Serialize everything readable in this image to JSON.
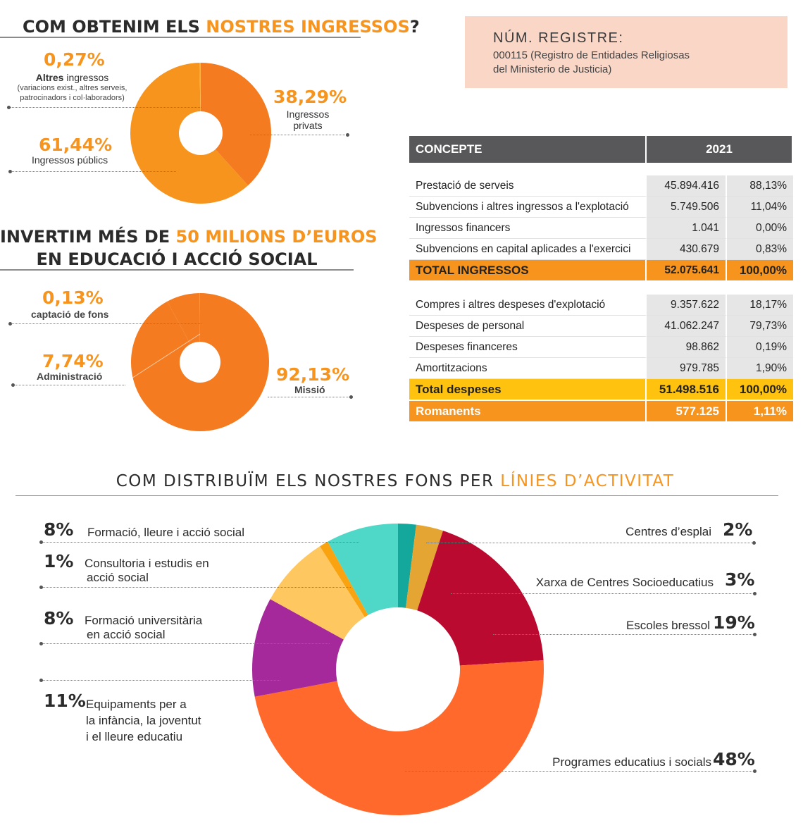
{
  "income": {
    "title_part1": "COM OBTENIM ELS ",
    "title_highlight": "NOSTRES INGRESSOS",
    "title_part2": "?",
    "altres": {
      "pct": "0,27%",
      "label_bold": "Altres",
      "label_rest": " ingressos",
      "note_line1": "(variacions exist., altres serveis,",
      "note_line2": "patrocinadors i col·laboradors)"
    },
    "privats": {
      "pct": "38,29%",
      "label_line1": "Ingressos",
      "label_line2": "privats"
    },
    "publics": {
      "pct": "61,44%",
      "label": "Ingressos públics"
    }
  },
  "invest": {
    "line1_part1": "INVERTIM MÉS DE ",
    "line1_highlight": "50 MILIONS D’EUROS",
    "line2": "EN EDUCACIÓ I ACCIÓ SOCIAL",
    "captacio": {
      "pct": "0,13%",
      "label": "captació de fons"
    },
    "admin": {
      "pct": "7,74%",
      "label": "Administració"
    },
    "missio": {
      "pct": "92,13%",
      "label": "Missió"
    }
  },
  "registry": {
    "title": "NÚM. REGISTRE:",
    "line1": "000115 (Registro de Entidades Religiosas",
    "line2": "del Ministerio de Justicia)"
  },
  "table": {
    "header": {
      "concept": "CONCEPTE",
      "year": "2021"
    },
    "income_rows": [
      {
        "concept": "Prestació de serveis",
        "amount": "45.894.416",
        "pct": "88,13%"
      },
      {
        "concept": "Subvencions i altres ingressos a l'explotació",
        "amount": "5.749.506",
        "pct": "11,04%"
      },
      {
        "concept": "Ingressos financers",
        "amount": "1.041",
        "pct": "0,00%"
      },
      {
        "concept": "Subvencions en capital aplicades a l'exercici",
        "amount": "430.679",
        "pct": "0,83%"
      }
    ],
    "income_total": {
      "concept": "TOTAL INGRESSOS",
      "amount": "52.075.641",
      "pct": "100,00%"
    },
    "expense_rows": [
      {
        "concept": "Compres i altres despeses d'explotació",
        "amount": "9.357.622",
        "pct": "18,17%"
      },
      {
        "concept": "Despeses de personal",
        "amount": "41.062.247",
        "pct": "79,73%"
      },
      {
        "concept": "Despeses financeres",
        "amount": "98.862",
        "pct": "0,19%"
      },
      {
        "concept": "Amortitzacions",
        "amount": "979.785",
        "pct": "1,90%"
      }
    ],
    "expense_total": {
      "concept": "Total despeses",
      "amount": "51.498.516",
      "pct": "100,00%"
    },
    "romanents": {
      "concept": "Romanents",
      "amount": "577.125",
      "pct": "1,11%"
    }
  },
  "distribution": {
    "title_part1": "COM DISTRIBUÏM ELS NOSTRES FONS PER ",
    "title_highlight": "LÍNIES D’ACTIVITAT",
    "labels": {
      "formacio_lleure": {
        "pct": "8%",
        "line1": "Formació, lleure i acció social"
      },
      "consultoria": {
        "pct": "1%",
        "line1": "Consultoria i estudis en",
        "line2": "acció social"
      },
      "universitaria": {
        "pct": "8%",
        "line1": "Formació universitària",
        "line2": "en acció social"
      },
      "equipaments": {
        "pct": "11%",
        "line1": "Equipaments per a",
        "line2": "la infància, la joventut",
        "line3": "i el lleure educatiu"
      },
      "esplai": {
        "pct": "2%",
        "line1": "Centres d’esplai"
      },
      "xarxa": {
        "pct": "3%",
        "line1": "Xarxa de Centres Socioeducatius"
      },
      "bressol": {
        "pct": "19%",
        "line1": "Escoles bressol"
      },
      "programes": {
        "pct": "48%",
        "line1": "Programes educatius i socials"
      }
    }
  },
  "chart_data": [
    {
      "type": "pie",
      "title": "COM OBTENIM ELS NOSTRES INGRESSOS?",
      "categories": [
        "Ingressos privats",
        "Ingressos públics",
        "Altres ingressos"
      ],
      "values": [
        38.29,
        61.44,
        0.27
      ],
      "colors": [
        "#f47b20",
        "#f7941d",
        "#ffb347"
      ]
    },
    {
      "type": "pie",
      "title": "INVERTIM MÉS DE 50 MILIONS D’EUROS EN EDUCACIÓ I ACCIÓ SOCIAL",
      "categories": [
        "Missió",
        "Administració",
        "captació de fons"
      ],
      "values": [
        92.13,
        7.74,
        0.13
      ],
      "colors": [
        "#f47b20",
        "#f47b20",
        "#f7941d"
      ]
    },
    {
      "type": "pie",
      "title": "COM DISTRIBUÏM ELS NOSTRES FONS PER LÍNIES D’ACTIVITAT",
      "categories": [
        "Centres d’esplai",
        "Xarxa de Centres Socioeducatius",
        "Escoles bressol",
        "Programes educatius i socials",
        "Equipaments per a la infància, la joventut i el lleure educatiu",
        "Formació universitària en acció social",
        "Consultoria i estudis en acció social",
        "Formació, lleure i acció social"
      ],
      "values": [
        2,
        3,
        19,
        48,
        11,
        8,
        1,
        8
      ],
      "colors": [
        "#14a79b",
        "#e5a532",
        "#bb0a30",
        "#ff6a2c",
        "#a6299b",
        "#ffc75f",
        "#f8a30f",
        "#4fd8c8"
      ]
    }
  ]
}
